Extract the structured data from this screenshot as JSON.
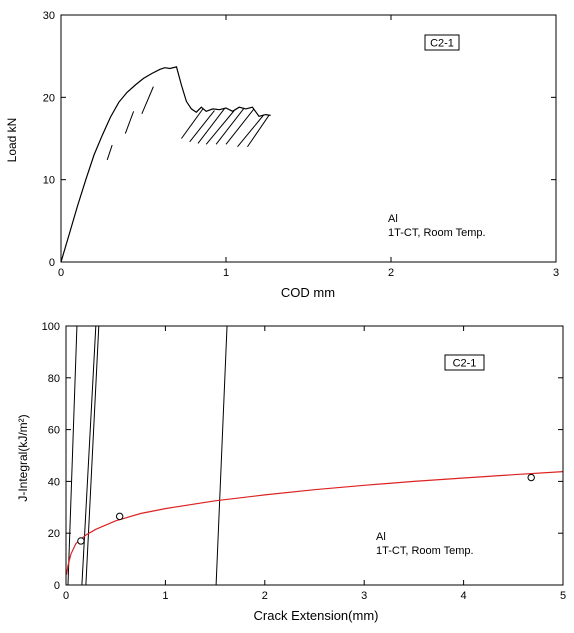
{
  "chart_data": [
    {
      "type": "line",
      "title": "",
      "xlabel": "COD mm",
      "ylabel": "Load kN",
      "xlim": [
        0,
        3
      ],
      "ylim": [
        0,
        30
      ],
      "x_ticks": [
        0,
        1,
        2,
        3
      ],
      "y_ticks": [
        0,
        10,
        20,
        30
      ],
      "tag": "C2-1",
      "annotation_lines": [
        "Al",
        "1T-CT, Room Temp."
      ],
      "series": [
        {
          "color": "#000000",
          "x": [
            0.0,
            0.05,
            0.1,
            0.15,
            0.2,
            0.25,
            0.3,
            0.35,
            0.4,
            0.45,
            0.5,
            0.55,
            0.6,
            0.63,
            0.66,
            0.7,
            0.73,
            0.76,
            0.79,
            0.82,
            0.85,
            0.88,
            0.92,
            0.96,
            1.0,
            1.04,
            1.08,
            1.12,
            1.16,
            1.2,
            1.24,
            1.27
          ],
          "y": [
            0.0,
            3.4,
            6.8,
            10.0,
            13.0,
            15.4,
            17.6,
            19.4,
            20.6,
            21.5,
            22.3,
            22.9,
            23.4,
            23.6,
            23.5,
            23.7,
            21.5,
            19.5,
            18.6,
            18.2,
            18.8,
            18.3,
            18.6,
            18.5,
            18.7,
            18.3,
            18.8,
            18.6,
            18.8,
            17.7,
            17.9,
            17.8
          ]
        }
      ],
      "unloading_lines": [
        {
          "x": [
            0.28,
            0.31
          ],
          "y": [
            12.4,
            14.2
          ]
        },
        {
          "x": [
            0.39,
            0.44
          ],
          "y": [
            15.6,
            18.3
          ]
        },
        {
          "x": [
            0.49,
            0.56
          ],
          "y": [
            18.0,
            21.3
          ]
        },
        {
          "x": [
            0.73,
            0.86
          ],
          "y": [
            15.0,
            18.6
          ]
        },
        {
          "x": [
            0.78,
            0.93
          ],
          "y": [
            14.6,
            18.4
          ]
        },
        {
          "x": [
            0.83,
            0.99
          ],
          "y": [
            14.4,
            18.6
          ]
        },
        {
          "x": [
            0.88,
            1.05
          ],
          "y": [
            14.3,
            18.4
          ]
        },
        {
          "x": [
            0.94,
            1.11
          ],
          "y": [
            14.3,
            18.7
          ]
        },
        {
          "x": [
            1.0,
            1.17
          ],
          "y": [
            14.3,
            18.6
          ]
        },
        {
          "x": [
            1.07,
            1.23
          ],
          "y": [
            14.0,
            17.9
          ]
        },
        {
          "x": [
            1.13,
            1.26
          ],
          "y": [
            14.0,
            17.8
          ]
        }
      ]
    },
    {
      "type": "scatter",
      "title": "",
      "xlabel": "Crack Extension(mm)",
      "ylabel": "J-Integral(kJ/m²)",
      "xlim": [
        0,
        5
      ],
      "ylim": [
        0,
        100
      ],
      "x_ticks": [
        0,
        1,
        2,
        3,
        4,
        5
      ],
      "y_ticks": [
        0,
        20,
        40,
        60,
        80,
        100
      ],
      "tag": "C2-1",
      "annotation_lines": [
        "Al",
        "1T-CT, Room Temp."
      ],
      "points": {
        "x": [
          0.15,
          0.54,
          4.68
        ],
        "y": [
          17,
          26.5,
          41.5
        ]
      },
      "fit_curve": {
        "color": "#dd2222",
        "x": [
          0.005,
          0.02,
          0.05,
          0.1,
          0.2,
          0.3,
          0.5,
          0.75,
          1.0,
          1.5,
          2.0,
          2.5,
          3.0,
          3.5,
          4.0,
          4.5,
          5.0
        ],
        "y": [
          4,
          7.5,
          12,
          16,
          19.3,
          21.5,
          24.8,
          27.6,
          29.5,
          32.5,
          34.8,
          36.8,
          38.5,
          40.0,
          41.3,
          42.6,
          43.8
        ]
      },
      "construction_lines": [
        {
          "x": [
            0.02,
            0.11
          ],
          "y": [
            0,
            100
          ]
        },
        {
          "x": [
            0.16,
            0.3
          ],
          "y": [
            0,
            100
          ]
        },
        {
          "x": [
            0.2,
            0.33
          ],
          "y": [
            0,
            100
          ]
        },
        {
          "x": [
            1.51,
            1.62
          ],
          "y": [
            0,
            100
          ]
        }
      ]
    }
  ]
}
